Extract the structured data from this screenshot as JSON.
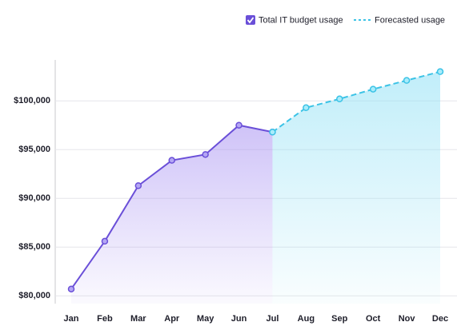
{
  "chart_data": {
    "type": "line",
    "categories": [
      "Jan",
      "Feb",
      "Mar",
      "Apr",
      "May",
      "Jun",
      "Jul",
      "Aug",
      "Sep",
      "Oct",
      "Nov",
      "Dec"
    ],
    "series": [
      {
        "name": "Total IT budget usage",
        "color": "#6a4fd8",
        "values": [
          80700,
          85600,
          91300,
          93900,
          94500,
          97500,
          96800,
          null,
          null,
          null,
          null,
          null
        ]
      },
      {
        "name": "Forecasted usage",
        "color": "#3cc3e6",
        "dashed": true,
        "values": [
          null,
          null,
          null,
          null,
          null,
          null,
          96800,
          99300,
          100200,
          101200,
          102100,
          103000
        ]
      }
    ],
    "ylim": [
      79200,
      104200
    ],
    "yticks": [
      {
        "value": 80000,
        "label": "$80,000"
      },
      {
        "value": 85000,
        "label": "$85,000"
      },
      {
        "value": 90000,
        "label": "$90,000"
      },
      {
        "value": 95000,
        "label": "$95,000"
      },
      {
        "value": 100000,
        "label": "$100,000"
      }
    ],
    "grid": true,
    "legend": "top-right"
  }
}
